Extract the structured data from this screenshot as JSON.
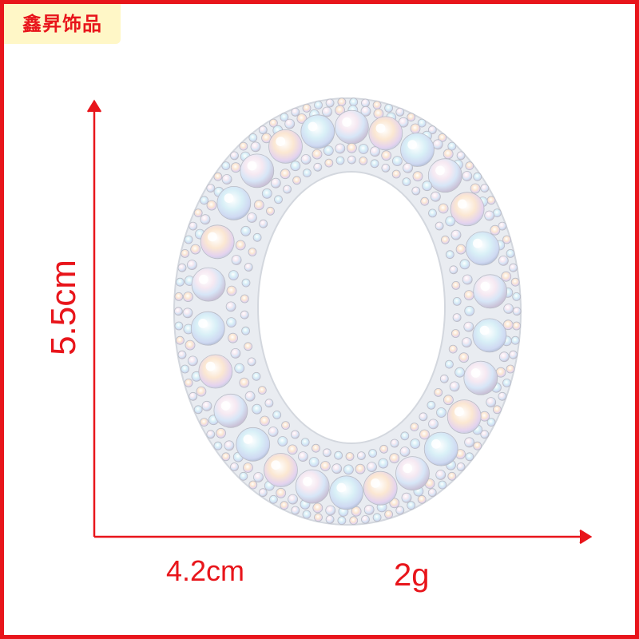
{
  "brand": {
    "label": "鑫昇饰品"
  },
  "product": {
    "name_icon": "rhinestone-letter-o",
    "colors": {
      "base": "#e9ecf1",
      "accent": "#e8151b"
    }
  },
  "dimensions": {
    "height": "5.5cm",
    "width": "4.2cm",
    "weight": "2g"
  }
}
